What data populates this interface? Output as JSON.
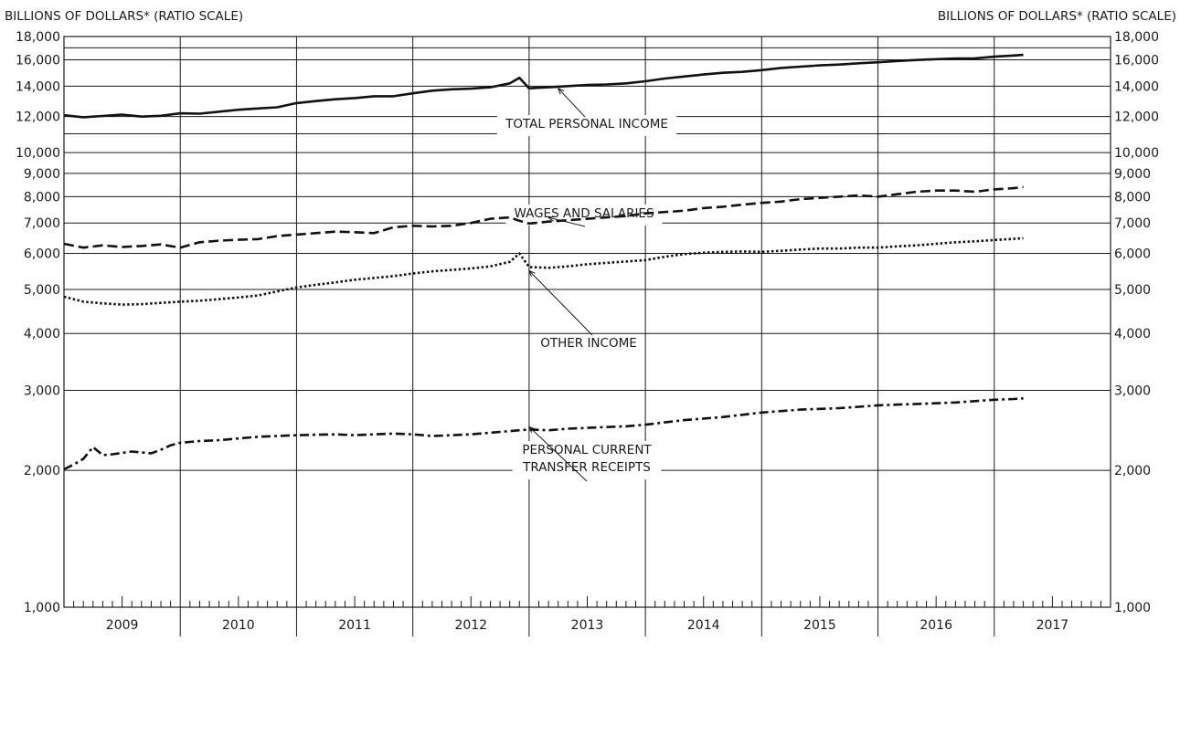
{
  "chart_data": {
    "type": "line",
    "y_scale": "log",
    "ylim": [
      1000,
      18000
    ],
    "y_ticks": [
      1000,
      2000,
      3000,
      4000,
      5000,
      6000,
      7000,
      8000,
      9000,
      10000,
      12000,
      14000,
      16000,
      18000
    ],
    "y_tick_labels": [
      "1,000",
      "2,000",
      "3,000",
      "4,000",
      "5,000",
      "6,000",
      "7,000",
      "8,000",
      "9,000",
      "10,000",
      "12,000",
      "14,000",
      "16,000",
      "18,000"
    ],
    "ylabel_left": "BILLIONS OF DOLLARS* (RATIO SCALE)",
    "ylabel_right": "BILLIONS OF DOLLARS* (RATIO SCALE)",
    "x_range": [
      "2009-01",
      "2017-12"
    ],
    "x_categories": [
      "2009",
      "2010",
      "2011",
      "2012",
      "2013",
      "2014",
      "2015",
      "2016",
      "2017"
    ],
    "grid": "horizontal at ticks, vertical at year boundaries",
    "series": [
      {
        "name": "TOTAL PERSONAL INCOME",
        "style": "solid",
        "x": [
          "2009-01",
          "2009-03",
          "2009-05",
          "2009-07",
          "2009-09",
          "2009-11",
          "2010-01",
          "2010-03",
          "2010-05",
          "2010-07",
          "2010-09",
          "2010-11",
          "2011-01",
          "2011-03",
          "2011-05",
          "2011-07",
          "2011-09",
          "2011-11",
          "2012-01",
          "2012-03",
          "2012-05",
          "2012-07",
          "2012-09",
          "2012-11",
          "2012-12",
          "2013-01",
          "2013-03",
          "2013-05",
          "2013-07",
          "2013-09",
          "2013-11",
          "2014-01",
          "2014-03",
          "2014-05",
          "2014-07",
          "2014-09",
          "2014-11",
          "2015-01",
          "2015-03",
          "2015-05",
          "2015-07",
          "2015-09",
          "2015-11",
          "2016-01",
          "2016-03",
          "2016-05",
          "2016-07",
          "2016-09",
          "2016-11",
          "2017-01",
          "2017-03",
          "2017-04"
        ],
        "values": [
          12080,
          11960,
          12040,
          12120,
          12000,
          12050,
          12200,
          12180,
          12300,
          12420,
          12500,
          12580,
          12850,
          12980,
          13100,
          13180,
          13300,
          13300,
          13500,
          13680,
          13780,
          13820,
          13920,
          14200,
          14600,
          13850,
          13920,
          14000,
          14080,
          14120,
          14200,
          14350,
          14550,
          14700,
          14850,
          14980,
          15050,
          15180,
          15350,
          15450,
          15550,
          15620,
          15720,
          15800,
          15900,
          15980,
          16050,
          16100,
          16120,
          16250,
          16350,
          16400
        ]
      },
      {
        "name": "WAGES AND SALARIES",
        "style": "dashed",
        "x": [
          "2009-01",
          "2009-03",
          "2009-05",
          "2009-07",
          "2009-09",
          "2009-11",
          "2010-01",
          "2010-03",
          "2010-05",
          "2010-07",
          "2010-09",
          "2010-11",
          "2011-01",
          "2011-03",
          "2011-05",
          "2011-07",
          "2011-09",
          "2011-11",
          "2012-01",
          "2012-03",
          "2012-05",
          "2012-07",
          "2012-09",
          "2012-11",
          "2012-12",
          "2013-01",
          "2013-03",
          "2013-05",
          "2013-07",
          "2013-09",
          "2013-11",
          "2014-01",
          "2014-03",
          "2014-05",
          "2014-07",
          "2014-09",
          "2014-11",
          "2015-01",
          "2015-03",
          "2015-05",
          "2015-07",
          "2015-09",
          "2015-11",
          "2016-01",
          "2016-03",
          "2016-05",
          "2016-07",
          "2016-09",
          "2016-11",
          "2017-01",
          "2017-03",
          "2017-04"
        ],
        "values": [
          6300,
          6180,
          6250,
          6200,
          6230,
          6280,
          6180,
          6350,
          6400,
          6430,
          6450,
          6550,
          6600,
          6650,
          6700,
          6680,
          6650,
          6850,
          6900,
          6880,
          6900,
          7000,
          7150,
          7200,
          7080,
          6980,
          7050,
          7100,
          7150,
          7200,
          7250,
          7350,
          7400,
          7450,
          7550,
          7600,
          7680,
          7750,
          7800,
          7900,
          7950,
          8000,
          8050,
          8000,
          8100,
          8200,
          8250,
          8250,
          8200,
          8300,
          8350,
          8400
        ]
      },
      {
        "name": "OTHER INCOME",
        "style": "dotted",
        "x": [
          "2009-01",
          "2009-03",
          "2009-05",
          "2009-07",
          "2009-09",
          "2009-11",
          "2010-01",
          "2010-03",
          "2010-05",
          "2010-07",
          "2010-09",
          "2010-11",
          "2011-01",
          "2011-03",
          "2011-05",
          "2011-07",
          "2011-09",
          "2011-11",
          "2012-01",
          "2012-03",
          "2012-05",
          "2012-07",
          "2012-09",
          "2012-11",
          "2012-12",
          "2013-01",
          "2013-03",
          "2013-05",
          "2013-07",
          "2013-09",
          "2013-11",
          "2014-01",
          "2014-03",
          "2014-05",
          "2014-07",
          "2014-09",
          "2014-11",
          "2015-01",
          "2015-03",
          "2015-05",
          "2015-07",
          "2015-09",
          "2015-11",
          "2016-01",
          "2016-03",
          "2016-05",
          "2016-07",
          "2016-09",
          "2016-11",
          "2017-01",
          "2017-03",
          "2017-04"
        ],
        "values": [
          4820,
          4700,
          4660,
          4630,
          4640,
          4670,
          4700,
          4720,
          4760,
          4800,
          4850,
          4950,
          5050,
          5120,
          5180,
          5250,
          5300,
          5350,
          5420,
          5480,
          5520,
          5560,
          5620,
          5750,
          6000,
          5600,
          5580,
          5620,
          5680,
          5720,
          5760,
          5800,
          5900,
          5980,
          6020,
          6050,
          6060,
          6050,
          6080,
          6120,
          6150,
          6150,
          6180,
          6180,
          6220,
          6250,
          6300,
          6350,
          6380,
          6420,
          6460,
          6480
        ]
      },
      {
        "name": "PERSONAL CURRENT TRANSFER RECEIPTS",
        "style": "dash-dot",
        "x": [
          "2009-01",
          "2009-02",
          "2009-03",
          "2009-04",
          "2009-05",
          "2009-06",
          "2009-08",
          "2009-10",
          "2009-11",
          "2009-12",
          "2010-01",
          "2010-02",
          "2010-03",
          "2010-05",
          "2010-07",
          "2010-09",
          "2010-11",
          "2011-01",
          "2011-03",
          "2011-05",
          "2011-07",
          "2011-09",
          "2011-11",
          "2012-01",
          "2012-03",
          "2012-05",
          "2012-07",
          "2012-09",
          "2012-11",
          "2012-12",
          "2013-01",
          "2013-03",
          "2013-05",
          "2013-07",
          "2013-09",
          "2013-11",
          "2014-01",
          "2014-03",
          "2014-05",
          "2014-07",
          "2014-09",
          "2014-11",
          "2015-01",
          "2015-03",
          "2015-05",
          "2015-07",
          "2015-09",
          "2015-11",
          "2016-01",
          "2016-03",
          "2016-05",
          "2016-07",
          "2016-09",
          "2016-11",
          "2017-01",
          "2017-03",
          "2017-04"
        ],
        "values": [
          2010,
          2060,
          2120,
          2250,
          2160,
          2170,
          2200,
          2180,
          2220,
          2270,
          2300,
          2310,
          2320,
          2330,
          2350,
          2370,
          2380,
          2390,
          2395,
          2400,
          2390,
          2400,
          2410,
          2400,
          2380,
          2390,
          2400,
          2420,
          2440,
          2450,
          2460,
          2450,
          2470,
          2480,
          2490,
          2500,
          2520,
          2550,
          2580,
          2600,
          2620,
          2650,
          2680,
          2700,
          2720,
          2730,
          2740,
          2760,
          2780,
          2790,
          2800,
          2810,
          2820,
          2840,
          2860,
          2870,
          2880
        ]
      }
    ],
    "annotations": [
      {
        "lines": [
          "TOTAL PERSONAL INCOME"
        ],
        "target": "2013-04"
      },
      {
        "lines": [
          "WAGES AND SALARIES"
        ],
        "target": "2013-03"
      },
      {
        "lines": [
          "OTHER INCOME"
        ],
        "target": "2013-01"
      },
      {
        "lines": [
          "PERSONAL CURRENT",
          "TRANSFER RECEIPTS"
        ],
        "target": "2013-01"
      }
    ]
  }
}
